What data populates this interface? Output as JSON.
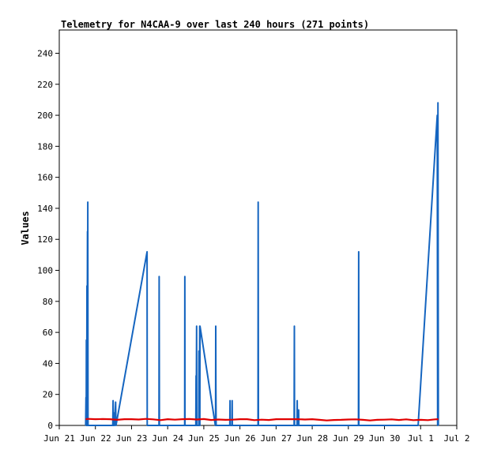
{
  "chart_data": {
    "type": "line",
    "title": "Telemetry for N4CAA-9 over last 240 hours (271 points)",
    "xlabel": "",
    "ylabel": "Values",
    "xlim": [
      21.0,
      32.0
    ],
    "ylim": [
      0,
      255
    ],
    "x_ticks": [
      {
        "v": 21.0,
        "label": "Jun 21"
      },
      {
        "v": 22.0,
        "label": "Jun 22"
      },
      {
        "v": 23.0,
        "label": "Jun 23"
      },
      {
        "v": 24.0,
        "label": "Jun 24"
      },
      {
        "v": 25.0,
        "label": "Jun 25"
      },
      {
        "v": 26.0,
        "label": "Jun 26"
      },
      {
        "v": 27.0,
        "label": "Jun 27"
      },
      {
        "v": 28.0,
        "label": "Jun 28"
      },
      {
        "v": 29.0,
        "label": "Jun 29"
      },
      {
        "v": 30.0,
        "label": "Jun 30"
      },
      {
        "v": 31.0,
        "label": "Jul 1"
      },
      {
        "v": 32.0,
        "label": "Jul 2"
      }
    ],
    "y_ticks": [
      0,
      20,
      40,
      60,
      80,
      100,
      120,
      140,
      160,
      180,
      200,
      220,
      240
    ],
    "grid": false,
    "series": [
      {
        "color": "#1565c0",
        "points": [
          [
            21.73,
            0
          ],
          [
            21.74,
            18
          ],
          [
            21.745,
            0
          ],
          [
            21.75,
            55
          ],
          [
            21.76,
            0
          ],
          [
            21.765,
            90
          ],
          [
            21.77,
            0
          ],
          [
            21.78,
            125
          ],
          [
            21.785,
            0
          ],
          [
            21.79,
            144
          ],
          [
            21.795,
            0
          ],
          [
            22.48,
            0
          ],
          [
            22.49,
            16
          ],
          [
            22.5,
            0
          ],
          [
            22.52,
            8
          ],
          [
            22.53,
            0
          ],
          [
            22.56,
            15
          ],
          [
            22.57,
            0
          ],
          [
            23.43,
            112
          ],
          [
            23.435,
            0
          ],
          [
            23.76,
            0
          ],
          [
            23.765,
            96
          ],
          [
            23.77,
            0
          ],
          [
            24.47,
            0
          ],
          [
            24.475,
            96
          ],
          [
            24.48,
            0
          ],
          [
            24.78,
            0
          ],
          [
            24.785,
            32
          ],
          [
            24.79,
            0
          ],
          [
            24.8,
            64
          ],
          [
            24.805,
            0
          ],
          [
            24.86,
            0
          ],
          [
            24.865,
            48
          ],
          [
            24.87,
            0
          ],
          [
            24.88,
            0
          ],
          [
            24.885,
            64
          ],
          [
            24.89,
            0
          ],
          [
            24.895,
            64
          ],
          [
            25.32,
            0
          ],
          [
            25.325,
            0
          ],
          [
            25.33,
            64
          ],
          [
            25.335,
            24
          ],
          [
            25.34,
            0
          ],
          [
            25.72,
            0
          ],
          [
            25.725,
            16
          ],
          [
            25.73,
            0
          ],
          [
            25.78,
            0
          ],
          [
            25.785,
            16
          ],
          [
            25.79,
            0
          ],
          [
            26.5,
            0
          ],
          [
            26.505,
            144
          ],
          [
            26.51,
            0
          ],
          [
            27.5,
            0
          ],
          [
            27.505,
            64
          ],
          [
            27.51,
            0
          ],
          [
            27.58,
            0
          ],
          [
            27.585,
            16
          ],
          [
            27.59,
            0
          ],
          [
            27.62,
            0
          ],
          [
            27.625,
            10
          ],
          [
            27.63,
            0
          ],
          [
            29.28,
            0
          ],
          [
            29.285,
            112
          ],
          [
            29.29,
            0
          ],
          [
            30.93,
            0
          ],
          [
            31.46,
            200
          ],
          [
            31.47,
            0
          ],
          [
            31.48,
            208
          ],
          [
            31.49,
            0
          ]
        ]
      },
      {
        "color": "#e00000",
        "points": [
          [
            21.73,
            4
          ],
          [
            21.8,
            4.2
          ],
          [
            22.0,
            4
          ],
          [
            22.2,
            4.1
          ],
          [
            22.4,
            4
          ],
          [
            22.6,
            3.6
          ],
          [
            22.8,
            4
          ],
          [
            23.0,
            4
          ],
          [
            23.2,
            3.8
          ],
          [
            23.4,
            4.2
          ],
          [
            23.6,
            3.9
          ],
          [
            23.8,
            3.4
          ],
          [
            24.0,
            4
          ],
          [
            24.2,
            3.7
          ],
          [
            24.4,
            4
          ],
          [
            24.6,
            4.1
          ],
          [
            24.8,
            3.8
          ],
          [
            25.0,
            4.1
          ],
          [
            25.2,
            3.5
          ],
          [
            25.4,
            3.8
          ],
          [
            25.6,
            3.6
          ],
          [
            25.8,
            3.7
          ],
          [
            26.0,
            4
          ],
          [
            26.2,
            4
          ],
          [
            26.4,
            3.4
          ],
          [
            26.6,
            3.7
          ],
          [
            26.8,
            3.5
          ],
          [
            27.0,
            4
          ],
          [
            27.2,
            4
          ],
          [
            27.4,
            4
          ],
          [
            27.6,
            4
          ],
          [
            27.8,
            3.8
          ],
          [
            28.0,
            4
          ],
          [
            28.2,
            3.6
          ],
          [
            28.4,
            3.2
          ],
          [
            28.6,
            3.5
          ],
          [
            28.8,
            3.6
          ],
          [
            29.0,
            3.8
          ],
          [
            29.2,
            3.9
          ],
          [
            29.4,
            3.6
          ],
          [
            29.6,
            3.2
          ],
          [
            29.8,
            3.6
          ],
          [
            30.0,
            3.7
          ],
          [
            30.2,
            3.9
          ],
          [
            30.4,
            3.5
          ],
          [
            30.6,
            3.9
          ],
          [
            30.8,
            3.4
          ],
          [
            31.0,
            3.6
          ],
          [
            31.2,
            3.4
          ],
          [
            31.4,
            3.9
          ],
          [
            31.49,
            4
          ]
        ]
      }
    ]
  }
}
